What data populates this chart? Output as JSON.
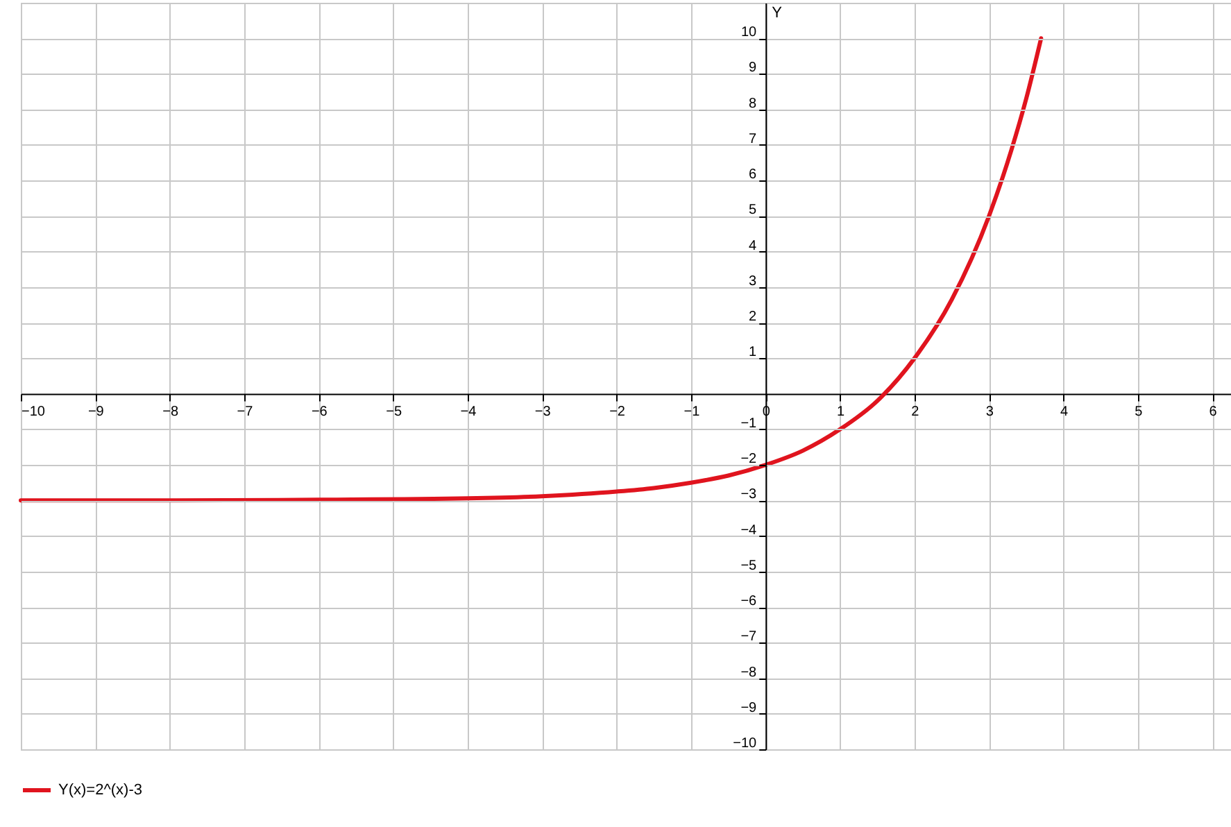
{
  "chart_data": {
    "type": "line",
    "ylabel": "Y",
    "x": [
      -10,
      -8,
      -6,
      -4,
      -3,
      -2,
      -1.5,
      -1,
      -0.5,
      0,
      0.5,
      1,
      1.5,
      2,
      2.5,
      3,
      3.3,
      3.5,
      3.7
    ],
    "series": [
      {
        "name": "Y(x)=2^(x)-3",
        "color": "#e0141e",
        "values": [
          -3,
          -3,
          -2.98,
          -2.94,
          -2.88,
          -2.75,
          -2.65,
          -2.5,
          -2.3,
          -2,
          -1.6,
          -1,
          -0.2,
          1,
          2.65,
          5,
          6.85,
          8.3,
          10
        ]
      }
    ],
    "xlim": [
      -10,
      6.25
    ],
    "ylim": [
      -10,
      11
    ],
    "xticks": [
      -10,
      -9,
      -8,
      -7,
      -6,
      -5,
      -4,
      -3,
      -2,
      -1,
      0,
      1,
      2,
      3,
      4,
      5,
      6
    ],
    "yticks": [
      -10,
      -9,
      -8,
      -7,
      -6,
      -5,
      -4,
      -3,
      -2,
      -1,
      1,
      2,
      3,
      4,
      5,
      6,
      7,
      8,
      9,
      10
    ],
    "grid": true,
    "legend": "bottom",
    "line_style": "solid"
  }
}
